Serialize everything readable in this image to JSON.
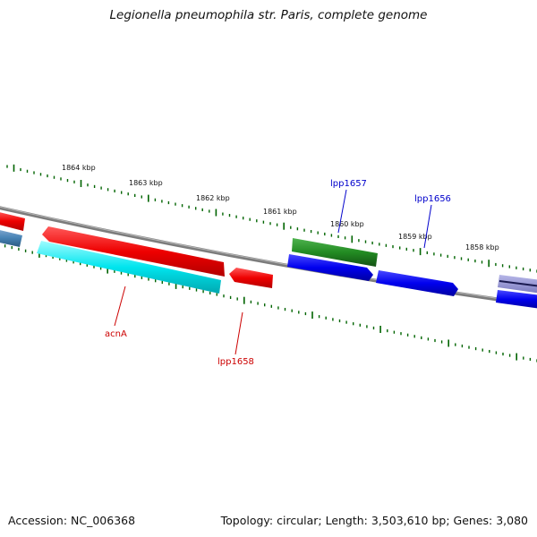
{
  "title": "Legionella pneumophila str. Paris, complete genome",
  "footer": {
    "accession": "Accession: NC_006368",
    "summary": "Topology: circular; Length: 3,503,610 bp; Genes: 3,080"
  },
  "scale": {
    "tick_labels": [
      "1864 kbp",
      "1863 kbp",
      "1862 kbp",
      "1861 kbp",
      "1860 kbp",
      "1859 kbp",
      "1858 kbp"
    ]
  },
  "genes": [
    {
      "name": "lpp1657",
      "strand": "forward",
      "color": "#0000cc"
    },
    {
      "name": "lpp1656",
      "strand": "forward",
      "color": "#0000cc"
    },
    {
      "name": "acnA",
      "strand": "reverse",
      "color": "#cc0000"
    },
    {
      "name": "lpp1658",
      "strand": "reverse",
      "color": "#cc0000"
    }
  ],
  "colors": {
    "backbone": "#808080",
    "forward_cds": "#0000ee",
    "forward_gene": "#228b22",
    "reverse_cds": "#ee0000",
    "reverse_other": "#00e5ee",
    "misc": "#4682b4",
    "tick": "#006400"
  }
}
